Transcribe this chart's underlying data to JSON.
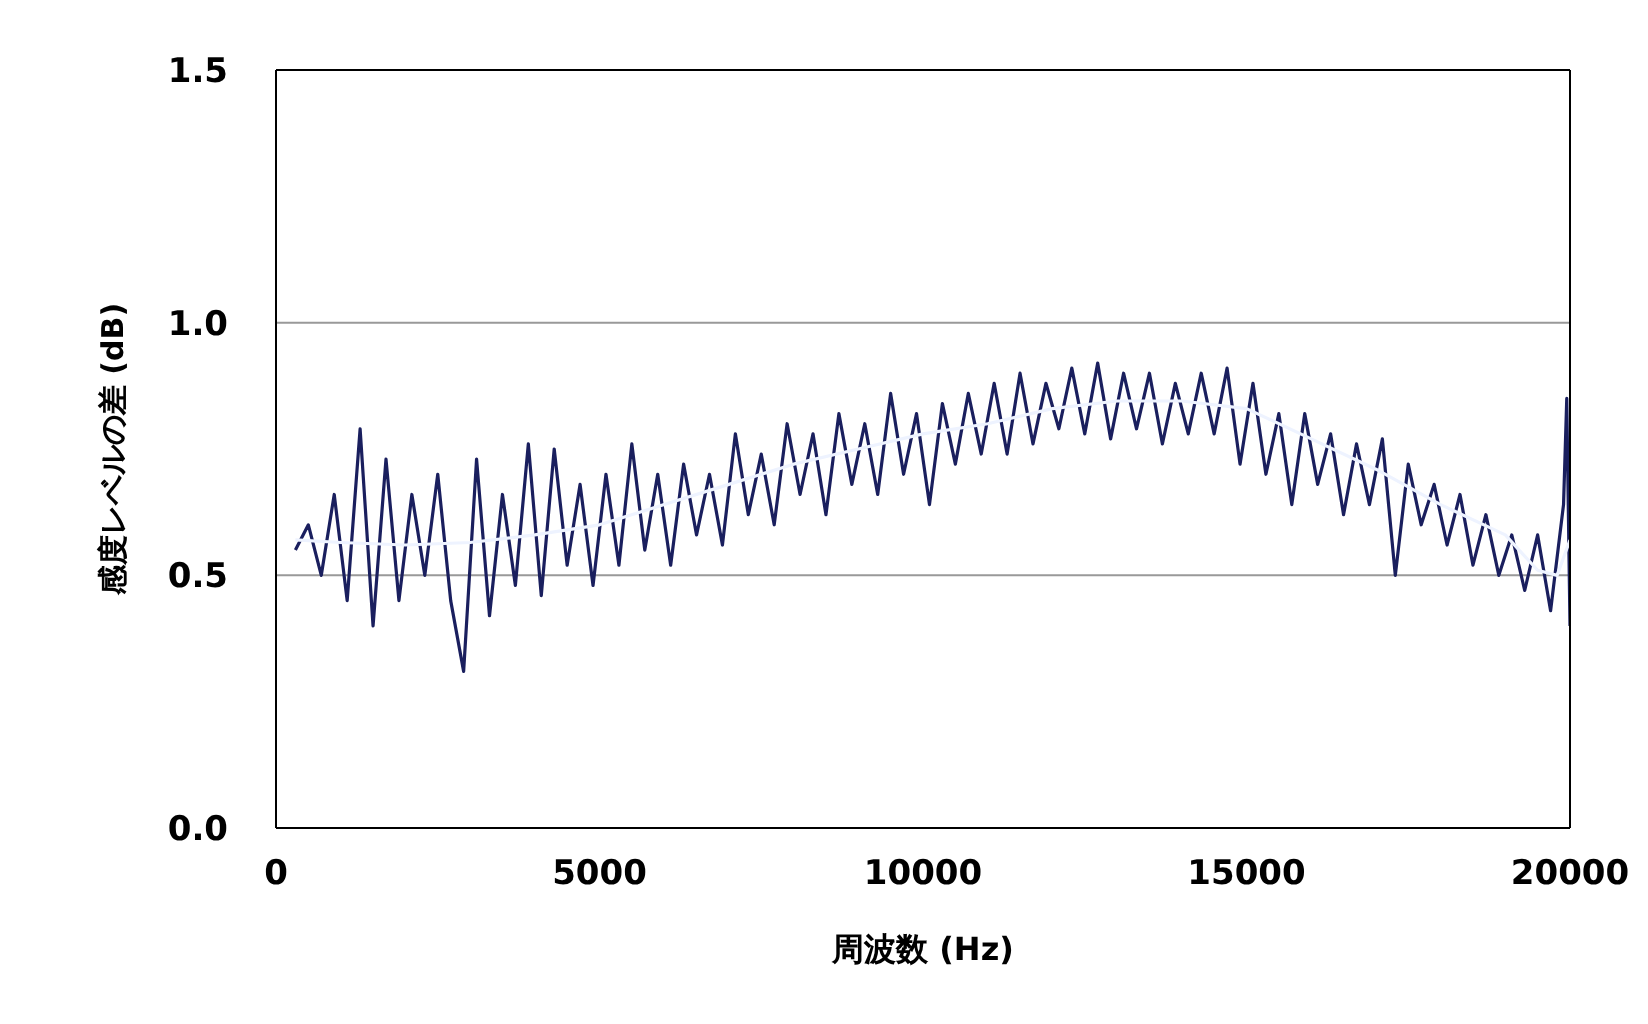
{
  "chart_data": {
    "type": "line",
    "xlabel": "周波数 (Hz)",
    "ylabel": "感度レベルの差 (dB)",
    "xlim": [
      0,
      20000
    ],
    "xticks": [
      0,
      5000,
      10000,
      15000,
      20000
    ],
    "ylim": [
      0,
      1.5
    ],
    "yticks": [
      {
        "value": 0,
        "label": "0.0"
      },
      {
        "value": 0.5,
        "label": "0.5"
      },
      {
        "value": 1,
        "label": "1.0"
      },
      {
        "value": 1.5,
        "label": "1.5"
      }
    ],
    "grid": "y",
    "legend": false,
    "marker": "none",
    "line_style": "solid",
    "series": [
      {
        "color": "#1a1f5e",
        "x": [
          300,
          500,
          700,
          900,
          1100,
          1300,
          1500,
          1700,
          1900,
          2100,
          2300,
          2500,
          2700,
          2900,
          3100,
          3300,
          3500,
          3700,
          3900,
          4100,
          4300,
          4500,
          4700,
          4900,
          5100,
          5300,
          5500,
          5700,
          5900,
          6100,
          6300,
          6500,
          6700,
          6900,
          7100,
          7300,
          7500,
          7700,
          7900,
          8100,
          8300,
          8500,
          8700,
          8900,
          9100,
          9300,
          9500,
          9700,
          9900,
          10100,
          10300,
          10500,
          10700,
          10900,
          11100,
          11300,
          11500,
          11700,
          11900,
          12100,
          12300,
          12500,
          12700,
          12900,
          13100,
          13300,
          13500,
          13700,
          13900,
          14100,
          14300,
          14500,
          14700,
          14900,
          15100,
          15300,
          15500,
          15700,
          15900,
          16100,
          16300,
          16500,
          16700,
          16900,
          17100,
          17300,
          17500,
          17700,
          17900,
          18100,
          18300,
          18500,
          18700,
          18900,
          19100,
          19300,
          19500,
          19700,
          19900,
          19950,
          20000
        ],
        "values": [
          0.55,
          0.6,
          0.5,
          0.66,
          0.45,
          0.79,
          0.4,
          0.73,
          0.45,
          0.66,
          0.5,
          0.7,
          0.45,
          0.31,
          0.73,
          0.42,
          0.66,
          0.48,
          0.76,
          0.46,
          0.75,
          0.52,
          0.68,
          0.48,
          0.7,
          0.52,
          0.76,
          0.55,
          0.7,
          0.52,
          0.72,
          0.58,
          0.7,
          0.56,
          0.78,
          0.62,
          0.74,
          0.6,
          0.8,
          0.66,
          0.78,
          0.62,
          0.82,
          0.68,
          0.8,
          0.66,
          0.86,
          0.7,
          0.82,
          0.64,
          0.84,
          0.72,
          0.86,
          0.74,
          0.88,
          0.74,
          0.9,
          0.76,
          0.88,
          0.79,
          0.91,
          0.78,
          0.92,
          0.77,
          0.9,
          0.79,
          0.9,
          0.76,
          0.88,
          0.78,
          0.9,
          0.78,
          0.91,
          0.72,
          0.88,
          0.7,
          0.82,
          0.64,
          0.82,
          0.68,
          0.78,
          0.62,
          0.76,
          0.64,
          0.77,
          0.5,
          0.72,
          0.6,
          0.68,
          0.56,
          0.66,
          0.52,
          0.62,
          0.5,
          0.58,
          0.47,
          0.58,
          0.43,
          0.64,
          0.85,
          0.4
        ]
      },
      {
        "color": "#eef3ff",
        "x": [
          300,
          1000,
          2000,
          3000,
          4000,
          5000,
          6000,
          7000,
          8000,
          9000,
          10000,
          11000,
          12000,
          13000,
          14000,
          15000,
          16000,
          17000,
          18000,
          19000,
          19500,
          19800,
          20000
        ],
        "values": [
          0.57,
          0.565,
          0.56,
          0.565,
          0.58,
          0.6,
          0.64,
          0.68,
          0.72,
          0.75,
          0.78,
          0.8,
          0.83,
          0.845,
          0.845,
          0.83,
          0.77,
          0.71,
          0.64,
          0.58,
          0.51,
          0.5,
          0.57
        ]
      }
    ]
  }
}
